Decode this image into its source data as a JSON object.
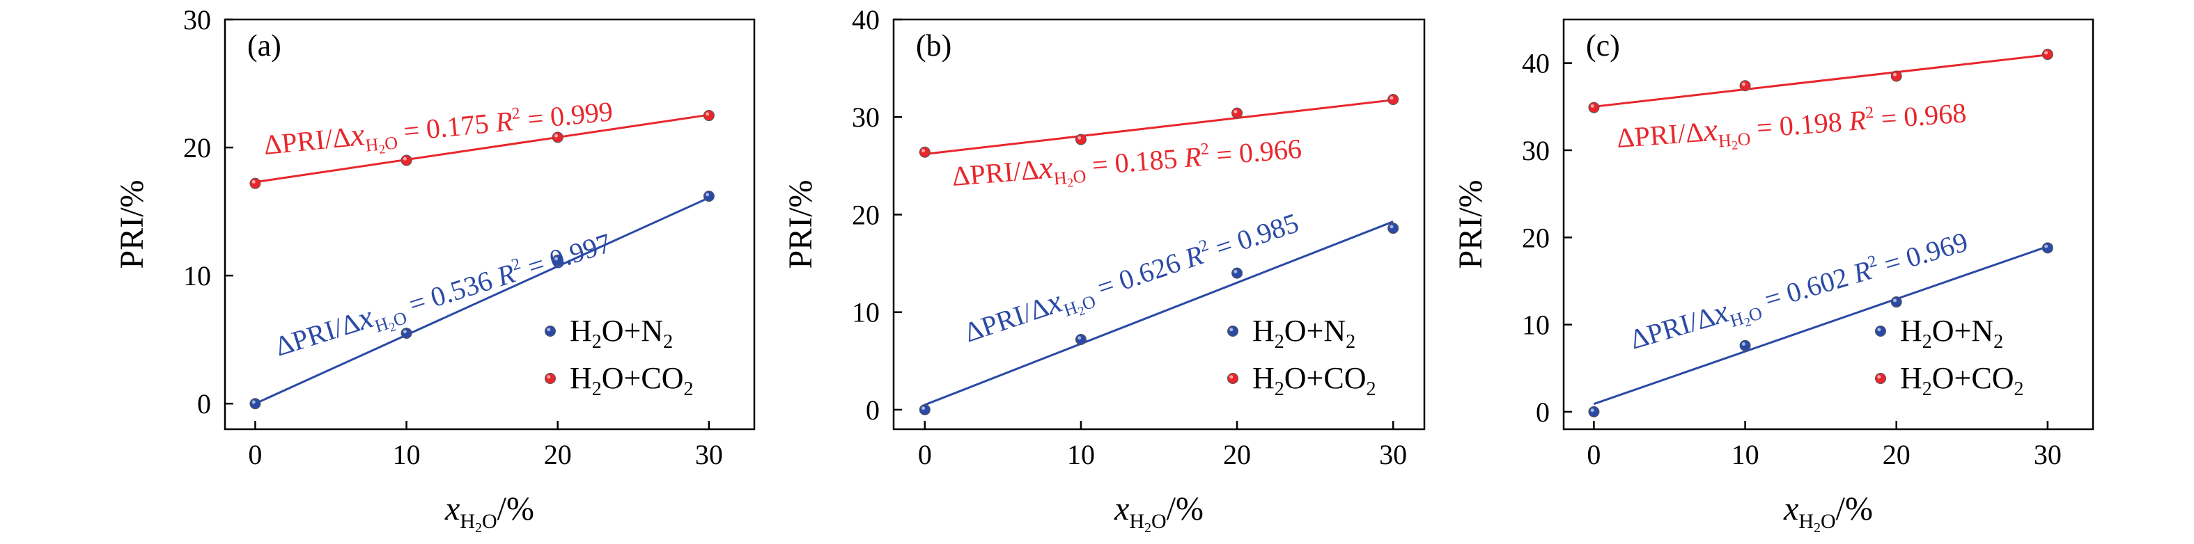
{
  "colors": {
    "h2o_n2": "#2b4aa6",
    "h2o_co2": "#e8262c",
    "axis": "#000000"
  },
  "series_labels": {
    "s1": {
      "formula_a": "H",
      "sub_a": "2",
      "formula_b": "O+N",
      "sub_b": "2"
    },
    "s2": {
      "formula_a": "H",
      "sub_a": "2",
      "formula_b": "O+CO",
      "sub_b": "2"
    }
  },
  "chart_data": [
    {
      "type": "scatter",
      "panel_label": "(a)",
      "xlabel": {
        "var": "x",
        "sub": "H",
        "sub2": "2",
        "sub3": "O",
        "unit": "/%"
      },
      "ylabel": "PRI/%",
      "xlim": [
        -2,
        33
      ],
      "ylim": [
        -2,
        30
      ],
      "xticks": [
        "0",
        "10",
        "20",
        "30"
      ],
      "yticks": [
        "0",
        "10",
        "20",
        "30"
      ],
      "series": [
        {
          "key": "s1",
          "color": "#2b4aa6",
          "x": [
            0,
            10,
            20,
            30
          ],
          "y": [
            0.0,
            5.5,
            11.2,
            16.2
          ],
          "fit": {
            "slope": 0.536,
            "intercept": 0.0
          },
          "annotation": {
            "lhs": "ΔPRI/Δ",
            "var": "x",
            "sub": "H",
            "sub2": "2",
            "sub3": "O",
            "slope": " = 0.536",
            "r": "R",
            "rsup": "2",
            "rval": " = 0.997"
          }
        },
        {
          "key": "s2",
          "color": "#e8262c",
          "x": [
            0,
            10,
            20,
            30
          ],
          "y": [
            17.2,
            19.0,
            20.8,
            22.5
          ],
          "fit": {
            "slope": 0.175,
            "intercept": 17.3
          },
          "annotation": {
            "lhs": "ΔPRI/Δ",
            "var": "x",
            "sub": "H",
            "sub2": "2",
            "sub3": "O",
            "slope": " = 0.175",
            "r": "R",
            "rsup": "2",
            "rval": " = 0.999"
          }
        }
      ]
    },
    {
      "type": "scatter",
      "panel_label": "(b)",
      "xlabel": {
        "var": "x",
        "sub": "H",
        "sub2": "2",
        "sub3": "O",
        "unit": "/%"
      },
      "ylabel": "PRI/%",
      "xlim": [
        -2,
        32
      ],
      "ylim": [
        -2,
        40
      ],
      "xticks": [
        "0",
        "10",
        "20",
        "30"
      ],
      "yticks": [
        "0",
        "10",
        "20",
        "30",
        "40"
      ],
      "series": [
        {
          "key": "s1",
          "color": "#2b4aa6",
          "x": [
            0,
            10,
            20,
            30
          ],
          "y": [
            0.0,
            7.2,
            14.0,
            18.6
          ],
          "fit": {
            "slope": 0.626,
            "intercept": 0.5
          },
          "annotation": {
            "lhs": "ΔPRI/Δ",
            "var": "x",
            "sub": "H",
            "sub2": "2",
            "sub3": "O",
            "slope": " = 0.626",
            "r": "R",
            "rsup": "2",
            "rval": " = 0.985"
          }
        },
        {
          "key": "s2",
          "color": "#e8262c",
          "x": [
            0,
            10,
            20,
            30
          ],
          "y": [
            26.4,
            27.7,
            30.4,
            31.8
          ],
          "fit": {
            "slope": 0.185,
            "intercept": 26.2
          },
          "annotation": {
            "lhs": "ΔPRI/Δ",
            "var": "x",
            "sub": "H",
            "sub2": "2",
            "sub3": "O",
            "slope": " = 0.185",
            "r": "R",
            "rsup": "2",
            "rval": " = 0.966"
          }
        }
      ]
    },
    {
      "type": "scatter",
      "panel_label": "(c)",
      "xlabel": {
        "var": "x",
        "sub": "H",
        "sub2": "2",
        "sub3": "O",
        "unit": "/%"
      },
      "ylabel": "PRI/%",
      "xlim": [
        -2,
        33
      ],
      "ylim": [
        -2,
        45
      ],
      "xticks": [
        "0",
        "10",
        "20",
        "30"
      ],
      "yticks": [
        "0",
        "10",
        "20",
        "30",
        "40"
      ],
      "series": [
        {
          "key": "s1",
          "color": "#2b4aa6",
          "x": [
            0,
            10,
            20,
            30
          ],
          "y": [
            0.0,
            7.6,
            12.6,
            18.8
          ],
          "fit": {
            "slope": 0.602,
            "intercept": 0.9
          },
          "annotation": {
            "lhs": "ΔPRI/Δ",
            "var": "x",
            "sub": "H",
            "sub2": "2",
            "sub3": "O",
            "slope": " = 0.602",
            "r": "R",
            "rsup": "2",
            "rval": " = 0.969"
          }
        },
        {
          "key": "s2",
          "color": "#e8262c",
          "x": [
            0,
            10,
            20,
            30
          ],
          "y": [
            34.9,
            37.4,
            38.5,
            41.0
          ],
          "fit": {
            "slope": 0.198,
            "intercept": 35.0
          },
          "annotation": {
            "lhs": "ΔPRI/Δ",
            "var": "x",
            "sub": "H",
            "sub2": "2",
            "sub3": "O",
            "slope": " = 0.198",
            "r": "R",
            "rsup": "2",
            "rval": " = 0.968"
          }
        }
      ]
    }
  ]
}
